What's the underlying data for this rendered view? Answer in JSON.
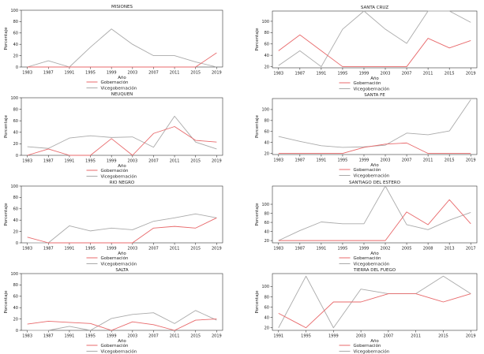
{
  "colors": {
    "gobernacion": "#e8696b",
    "vicegobernacion": "#aaaaaa",
    "axis": "#333333"
  },
  "chart_data": [
    {
      "type": "line",
      "title": "MISIONES",
      "xlabel": "Año",
      "ylabel": "Porcentaje",
      "x": [
        "1983",
        "1987",
        "1991",
        "1995",
        "1999",
        "2003",
        "2007",
        "2011",
        "2015",
        "2019"
      ],
      "ylim": [
        0,
        100
      ],
      "yticks": [
        0,
        20,
        40,
        60,
        80,
        100
      ],
      "series": [
        {
          "name": "Gobernación",
          "values": [
            0,
            0,
            0,
            0,
            0,
            0,
            0,
            0,
            0,
            25
          ]
        },
        {
          "name": "Vicegobernación",
          "values": [
            0,
            11,
            0,
            35,
            67,
            40,
            20,
            20,
            9,
            0
          ]
        }
      ]
    },
    {
      "type": "line",
      "title": "SANTA CRUZ",
      "xlabel": "Año",
      "ylabel": "Porcentaje",
      "x": [
        "1983",
        "1987",
        "1991",
        "1995",
        "1999",
        "2003",
        "2007",
        "2011",
        "2015",
        "2019"
      ],
      "ylim": [
        18,
        118
      ],
      "yticks": [
        20,
        40,
        60,
        80,
        100
      ],
      "series": [
        {
          "name": "Gobernación",
          "values": [
            48,
            76,
            48,
            20,
            20,
            20,
            20,
            70,
            53,
            66
          ]
        },
        {
          "name": "Vicegobernación",
          "values": [
            22,
            48,
            20,
            86,
            118,
            86,
            61,
            118,
            118,
            98
          ]
        }
      ]
    },
    {
      "type": "line",
      "title": "NEUQUEN",
      "xlabel": "Año",
      "ylabel": "Porcentaje",
      "x": [
        "1983",
        "1987",
        "1991",
        "1995",
        "1999",
        "2003",
        "2007",
        "2011",
        "2015",
        "2019"
      ],
      "ylim": [
        0,
        100
      ],
      "yticks": [
        0,
        20,
        40,
        60,
        80,
        100
      ],
      "series": [
        {
          "name": "Gobernación",
          "values": [
            0,
            11,
            0,
            0,
            29,
            0,
            38,
            50,
            26,
            23
          ]
        },
        {
          "name": "Vicegobernación",
          "values": [
            15,
            12,
            30,
            34,
            31,
            32,
            14,
            68,
            23,
            11
          ]
        }
      ]
    },
    {
      "type": "line",
      "title": "SANTA FE",
      "xlabel": "Año",
      "ylabel": "Porcentaje",
      "x": [
        "1983",
        "1987",
        "1991",
        "1995",
        "1999",
        "2003",
        "2007",
        "2011",
        "2015",
        "2019"
      ],
      "ylim": [
        18,
        120
      ],
      "yticks": [
        20,
        40,
        60,
        80,
        100
      ],
      "series": [
        {
          "name": "Gobernación",
          "values": [
            20,
            20,
            20,
            20,
            31,
            37,
            39,
            20,
            20,
            20
          ]
        },
        {
          "name": "Vicegobernación",
          "values": [
            51,
            42,
            34,
            31,
            32,
            35,
            57,
            54,
            61,
            118
          ]
        }
      ]
    },
    {
      "type": "line",
      "title": "RIO NEGRO",
      "xlabel": "Año",
      "ylabel": "Porcentaje",
      "x": [
        "1983",
        "1987",
        "1991",
        "1995",
        "1999",
        "2003",
        "2007",
        "2011",
        "2015",
        "2019"
      ],
      "ylim": [
        0,
        100
      ],
      "yticks": [
        0,
        20,
        40,
        60,
        80,
        100
      ],
      "series": [
        {
          "name": "Gobernación",
          "values": [
            10,
            0,
            0,
            0,
            0,
            0,
            26,
            29,
            26,
            44
          ]
        },
        {
          "name": "Vicegobernación",
          "values": [
            0,
            0,
            30,
            21,
            26,
            23,
            38,
            44,
            51,
            44
          ]
        }
      ]
    },
    {
      "type": "line",
      "title": "SANTIAGO DEL ESTERO",
      "xlabel": "Año",
      "ylabel": "Porcentaje",
      "x": [
        "1983",
        "1987",
        "1991",
        "1995",
        "1999",
        "2002",
        "2005",
        "2008",
        "2013",
        "2017"
      ],
      "ylim": [
        15,
        140
      ],
      "yticks": [
        20,
        40,
        60,
        80,
        100
      ],
      "series": [
        {
          "name": "Gobernación",
          "values": [
            20,
            20,
            20,
            20,
            20,
            20,
            83,
            55,
            110,
            57
          ]
        },
        {
          "name": "Vicegobernación",
          "values": [
            20,
            42,
            61,
            57,
            57,
            140,
            55,
            44,
            65,
            82
          ]
        }
      ]
    },
    {
      "type": "line",
      "title": "SALTA",
      "xlabel": "Año",
      "ylabel": "Porcentaje",
      "x": [
        "1983",
        "1987",
        "1991",
        "1995",
        "1999",
        "2003",
        "2007",
        "2011",
        "2015",
        "2019"
      ],
      "ylim": [
        0,
        100
      ],
      "yticks": [
        0,
        20,
        40,
        60,
        80,
        100
      ],
      "series": [
        {
          "name": "Gobernación",
          "values": [
            11,
            16,
            14,
            12,
            0,
            15,
            10,
            0,
            18,
            20
          ]
        },
        {
          "name": "Vicegobernación",
          "values": [
            0,
            0,
            7,
            0,
            21,
            28,
            31,
            12,
            35,
            18
          ]
        }
      ]
    },
    {
      "type": "line",
      "title": "TIERRA DEL FUEGO",
      "xlabel": "Año",
      "ylabel": "Porcentaje",
      "x": [
        "1991",
        "1995",
        "1999",
        "2003",
        "2007",
        "2011",
        "2015",
        "2019"
      ],
      "ylim": [
        15,
        125
      ],
      "yticks": [
        20,
        40,
        60,
        80,
        100
      ],
      "series": [
        {
          "name": "Gobernación",
          "values": [
            48,
            20,
            70,
            70,
            86,
            86,
            70,
            86
          ]
        },
        {
          "name": "Vicegobernación",
          "values": [
            20,
            120,
            20,
            95,
            86,
            86,
            120,
            86
          ]
        }
      ]
    }
  ]
}
